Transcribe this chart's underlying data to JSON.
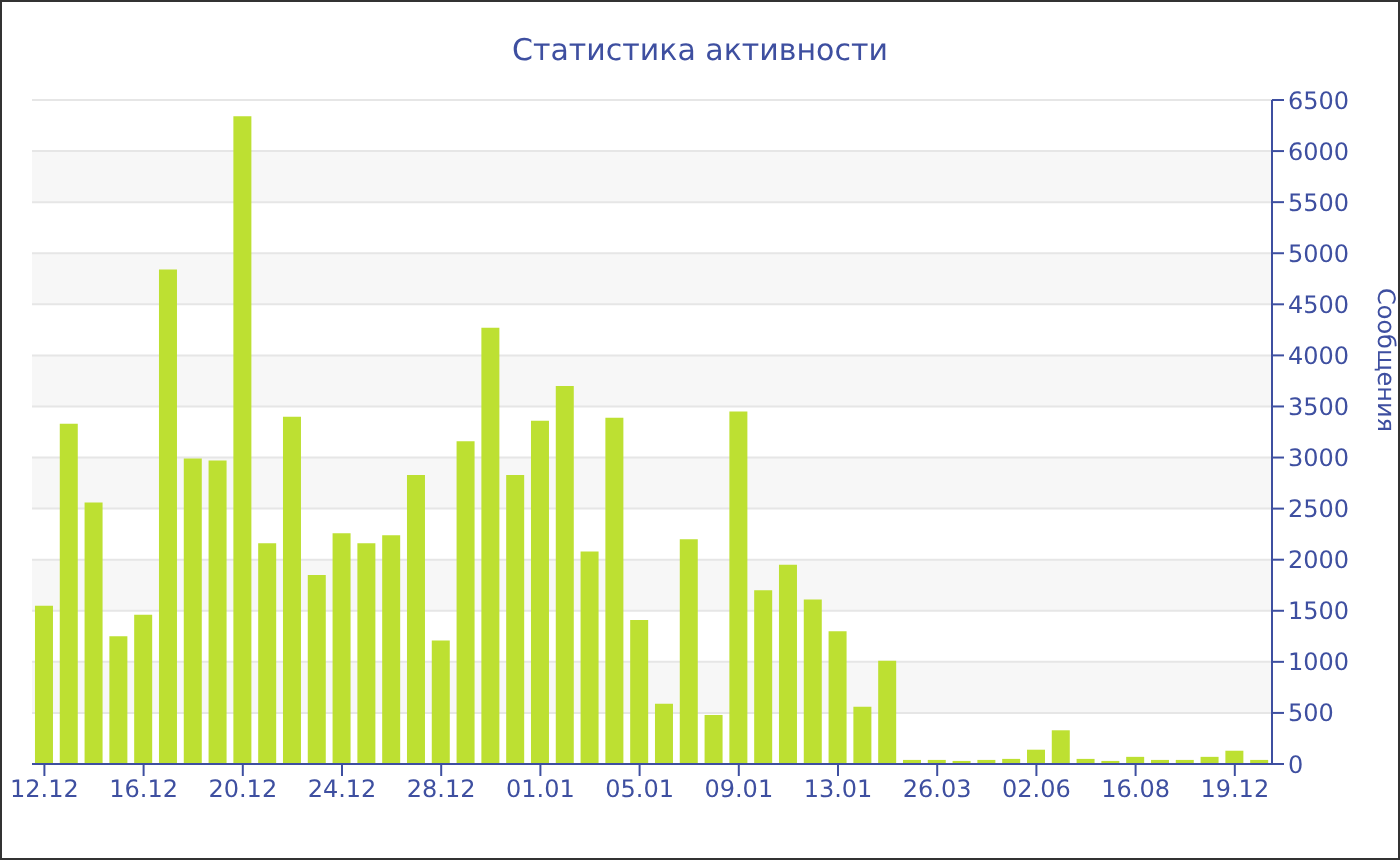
{
  "chart_data": {
    "type": "bar",
    "title": "Статистика активности",
    "ylabel": "Сообщения",
    "categories": [
      "12.12",
      null,
      null,
      null,
      "16.12",
      null,
      null,
      null,
      "20.12",
      null,
      null,
      null,
      "24.12",
      null,
      null,
      null,
      "28.12",
      null,
      null,
      null,
      "01.01",
      null,
      null,
      null,
      "05.01",
      null,
      null,
      null,
      "09.01",
      null,
      null,
      null,
      "13.01",
      null,
      null,
      null,
      "26.03",
      null,
      null,
      null,
      "02.06",
      null,
      null,
      null,
      "16.08",
      null,
      null,
      null,
      "19.12",
      null
    ],
    "values": [
      1550,
      3330,
      2560,
      1250,
      1460,
      4840,
      2990,
      2970,
      6340,
      2160,
      3400,
      1850,
      2260,
      2160,
      2240,
      2830,
      1210,
      3160,
      4270,
      2830,
      3360,
      3700,
      2080,
      3390,
      1410,
      590,
      2200,
      480,
      3450,
      1700,
      1950,
      1610,
      1300,
      560,
      1010,
      40,
      40,
      30,
      40,
      50,
      140,
      330,
      50,
      30,
      70,
      40,
      40,
      70,
      130,
      40
    ],
    "color": "#bde032",
    "ylim": [
      0,
      6500
    ],
    "yticks": [
      0,
      500,
      1000,
      1500,
      2000,
      2500,
      3000,
      3500,
      4000,
      4500,
      5000,
      5500,
      6000,
      6500
    ],
    "grid": "y"
  }
}
